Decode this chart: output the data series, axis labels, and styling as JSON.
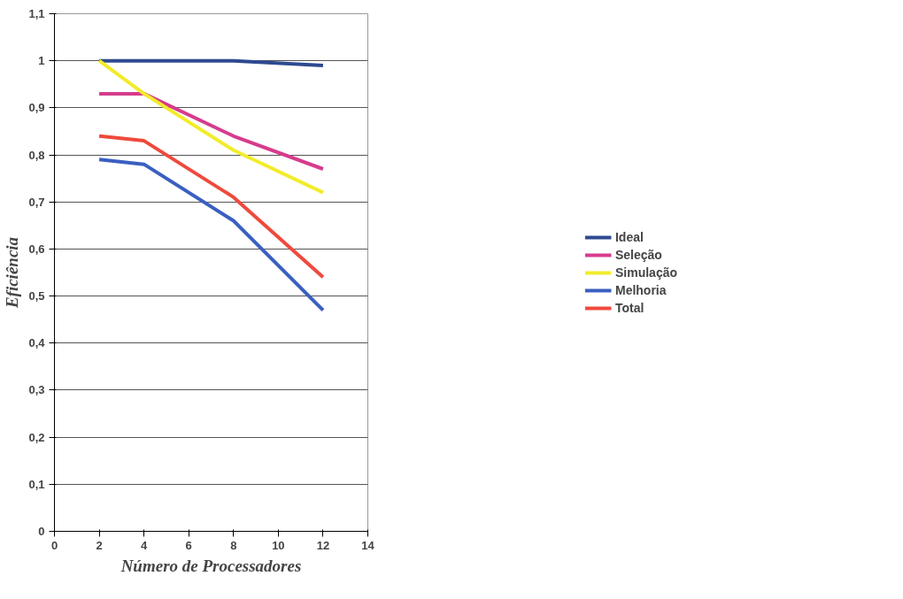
{
  "chart_data": {
    "type": "line",
    "xlabel": "Número de Processadores",
    "ylabel": "Eficiência",
    "x": [
      2,
      4,
      8,
      12
    ],
    "series": [
      {
        "name": "Ideal",
        "color": "#2e4a8f",
        "values": [
          1,
          1,
          1,
          0.99
        ]
      },
      {
        "name": "Seleção",
        "color": "#d63c8c",
        "values": [
          0.93,
          0.93,
          0.84,
          0.77
        ]
      },
      {
        "name": "Simulação",
        "color": "#f2ec2a",
        "values": [
          1,
          0.93,
          0.81,
          0.72
        ]
      },
      {
        "name": "Melhoria",
        "color": "#3a5fc0",
        "values": [
          0.79,
          0.78,
          0.66,
          0.47
        ]
      },
      {
        "name": "Total",
        "color": "#ee4a3c",
        "values": [
          0.84,
          0.83,
          0.71,
          0.54
        ]
      }
    ],
    "xlim": [
      0,
      14
    ],
    "xticks": [
      0,
      2,
      4,
      6,
      8,
      10,
      12,
      14
    ],
    "ylim": [
      0,
      1.1
    ],
    "yticks": [
      0,
      {
        "value": 0.1,
        "label": "0,1"
      },
      {
        "value": 0.2,
        "label": "0,2"
      },
      {
        "value": 0.3,
        "label": "0,3"
      },
      {
        "value": 0.4,
        "label": "0,4"
      },
      {
        "value": 0.5,
        "label": "0,5"
      },
      {
        "value": 0.6,
        "label": "0,6"
      },
      {
        "value": 0.7,
        "label": "0,7"
      },
      {
        "value": 0.8,
        "label": "0,8"
      },
      {
        "value": 0.9,
        "label": "0,9"
      },
      1,
      {
        "value": 1.1,
        "label": "1,1"
      }
    ],
    "grid": "y",
    "legend": "right",
    "marker": "none",
    "line_style": "solid"
  }
}
